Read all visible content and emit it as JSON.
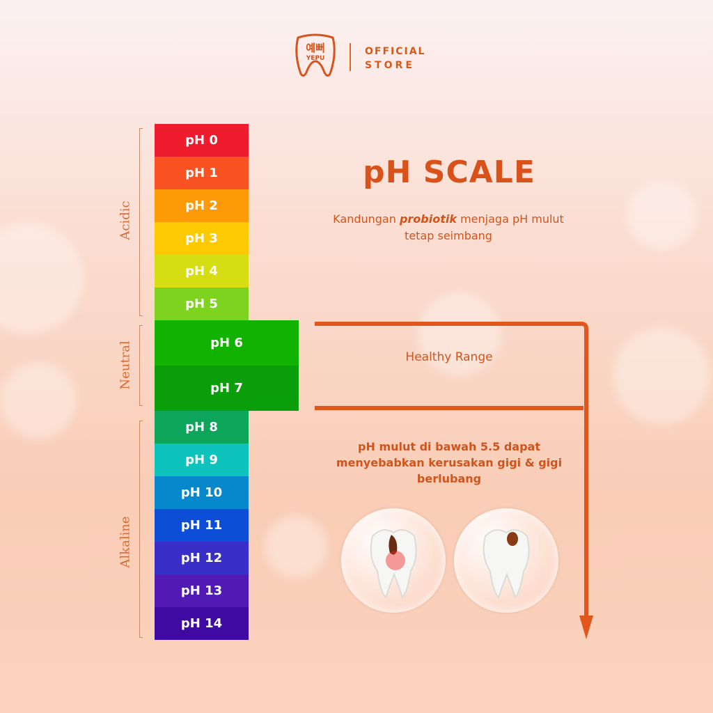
{
  "brand": {
    "logo_text_top": "예뻐",
    "logo_text_bottom": "YEPU",
    "store_line1": "OFFICIAL",
    "store_line2": "STORE"
  },
  "scale": {
    "segments": [
      {
        "label": "pH 0",
        "color": "#ee1c2c"
      },
      {
        "label": "pH 1",
        "color": "#f95223"
      },
      {
        "label": "pH 2",
        "color": "#fd9a08"
      },
      {
        "label": "pH 3",
        "color": "#fdc903"
      },
      {
        "label": "pH 4",
        "color": "#d6de13"
      },
      {
        "label": "pH 5",
        "color": "#7ed320"
      },
      {
        "label": "pH 6",
        "color": "#12b300"
      },
      {
        "label": "pH 7",
        "color": "#0a9e0a"
      },
      {
        "label": "pH 8",
        "color": "#0ca55a"
      },
      {
        "label": "pH 9",
        "color": "#0ec3bd"
      },
      {
        "label": "pH 10",
        "color": "#0888cc"
      },
      {
        "label": "pH 11",
        "color": "#0c4ed6"
      },
      {
        "label": "pH 12",
        "color": "#3a2ec8"
      },
      {
        "label": "pH 13",
        "color": "#521ab4"
      },
      {
        "label": "pH 14",
        "color": "#3e0aa2"
      }
    ],
    "groups": {
      "acidic": "Acidic",
      "neutral": "Neutral",
      "alkaline": "Alkaline"
    }
  },
  "title": "pH SCALE",
  "subtitle": {
    "before": "Kandungan ",
    "emphasis": "probiotik",
    "after": " menjaga pH mulut tetap seimbang"
  },
  "healthy_range": "Healthy Range",
  "warning": "pH mulut di bawah 5.5 dapat menyebabkan kerusakan gigi & gigi berlubang",
  "colors": {
    "accent": "#d8521a",
    "arrow": "#e0561c"
  }
}
